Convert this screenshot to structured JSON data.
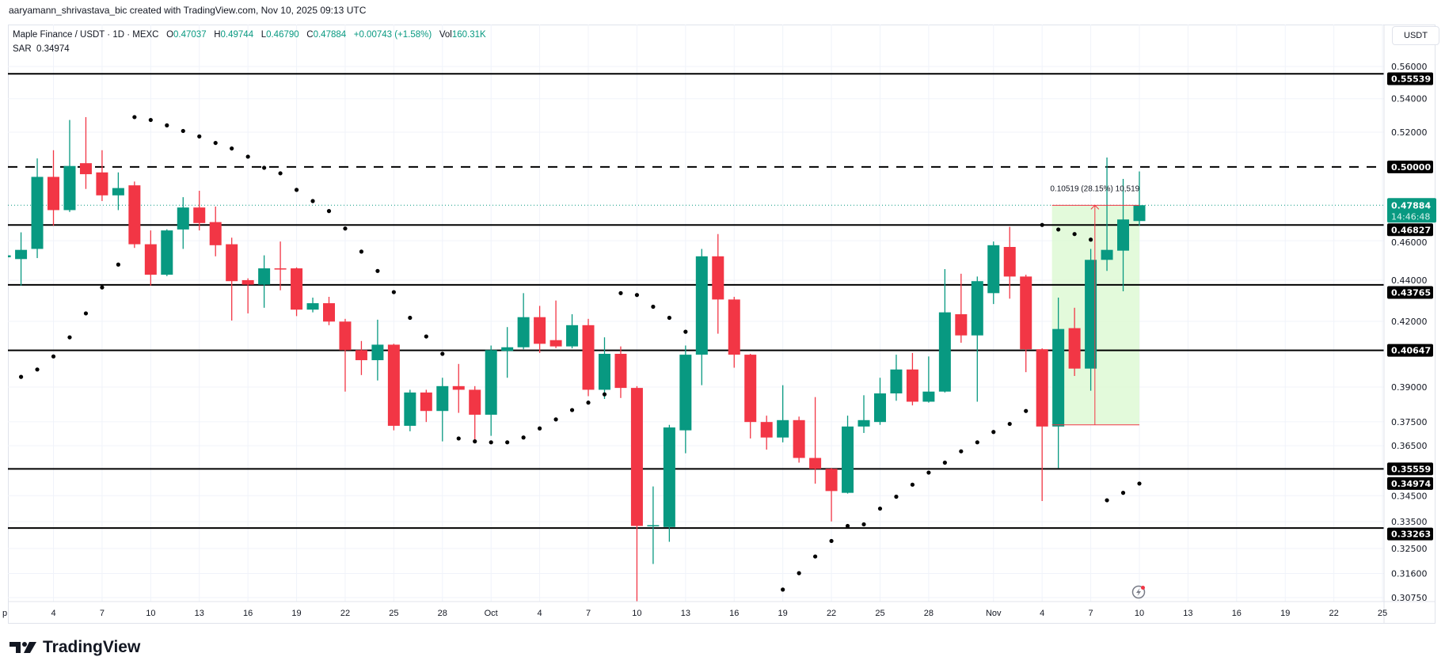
{
  "header": {
    "attribution": "aaryamann_shrivastava_bic created with TradingView.com, Nov 10, 2025 09:13 UTC"
  },
  "legend": {
    "symbol": "Maple Finance / USDT · 1D · MEXC",
    "o_label": "O",
    "o": "0.47037",
    "h_label": "H",
    "h": "0.49744",
    "l_label": "L",
    "l": "0.46790",
    "c_label": "C",
    "c": "0.47884",
    "change": "+0.00743 (+1.58%)",
    "vol_label": "Vol",
    "vol": "160.31K",
    "sar_label": "SAR",
    "sar": "0.34974"
  },
  "currency_button": "USDT",
  "logo": {
    "text": "TradingView"
  },
  "colors": {
    "up": "#089981",
    "down": "#F23645",
    "level": "#000000",
    "measure_fill": "#dcf9d2",
    "measure_line": "#F23645"
  },
  "chart_data": {
    "type": "candlestick",
    "title": "Maple Finance / USDT · 1D · MEXC",
    "start_date": "2025-09-01",
    "y_scale": "log",
    "ylim": [
      0.3075,
      0.56
    ],
    "candles_ohlc": [
      [
        0.4515,
        0.4535,
        0.4505,
        0.4525
      ],
      [
        0.4506,
        0.4644,
        0.4373,
        0.4553
      ],
      [
        0.4558,
        0.5048,
        0.4511,
        0.4944
      ],
      [
        0.4944,
        0.5095,
        0.4679,
        0.4762
      ],
      [
        0.4762,
        0.5272,
        0.4752,
        0.5005
      ],
      [
        0.5021,
        0.5289,
        0.4877,
        0.4959
      ],
      [
        0.4969,
        0.5095,
        0.4811,
        0.4842
      ],
      [
        0.4842,
        0.4969,
        0.4762,
        0.4882
      ],
      [
        0.4897,
        0.4918,
        0.4563,
        0.4582
      ],
      [
        0.4582,
        0.4654,
        0.4373,
        0.4427
      ],
      [
        0.4427,
        0.466,
        0.442,
        0.4654
      ],
      [
        0.4659,
        0.4832,
        0.4558,
        0.4776
      ],
      [
        0.4776,
        0.4867,
        0.4654,
        0.4693
      ],
      [
        0.4698,
        0.4781,
        0.452,
        0.4577
      ],
      [
        0.4582,
        0.4616,
        0.4204,
        0.4395
      ],
      [
        0.44,
        0.4409,
        0.4238,
        0.4378
      ],
      [
        0.4378,
        0.4525,
        0.4265,
        0.4459
      ],
      [
        0.4459,
        0.4596,
        0.435,
        0.4455
      ],
      [
        0.4459,
        0.4464,
        0.4225,
        0.4256
      ],
      [
        0.4256,
        0.4314,
        0.4243,
        0.4287
      ],
      [
        0.4287,
        0.4318,
        0.4182,
        0.4199
      ],
      [
        0.4199,
        0.4212,
        0.388,
        0.4066
      ],
      [
        0.4066,
        0.4108,
        0.3953,
        0.402
      ],
      [
        0.402,
        0.4208,
        0.3929,
        0.4091
      ],
      [
        0.4091,
        0.4095,
        0.3714,
        0.3733
      ],
      [
        0.3733,
        0.3888,
        0.371,
        0.3876
      ],
      [
        0.3876,
        0.3888,
        0.3749,
        0.3796
      ],
      [
        0.3796,
        0.3941,
        0.3668,
        0.3904
      ],
      [
        0.3904,
        0.4003,
        0.3788,
        0.3888
      ],
      [
        0.3888,
        0.3904,
        0.3672,
        0.378
      ],
      [
        0.378,
        0.4087,
        0.3691,
        0.4066
      ],
      [
        0.4062,
        0.4173,
        0.3941,
        0.4079
      ],
      [
        0.4079,
        0.4336,
        0.407,
        0.422
      ],
      [
        0.422,
        0.4274,
        0.4053,
        0.4095
      ],
      [
        0.4112,
        0.43,
        0.4075,
        0.4083
      ],
      [
        0.4083,
        0.4234,
        0.4074,
        0.4182
      ],
      [
        0.4182,
        0.4212,
        0.386,
        0.3888
      ],
      [
        0.3888,
        0.4125,
        0.3848,
        0.4049
      ],
      [
        0.4049,
        0.4083,
        0.3852,
        0.3896
      ],
      [
        0.3896,
        0.3904,
        0.3055,
        0.3334
      ],
      [
        0.3334,
        0.3486,
        0.3194,
        0.3337
      ],
      [
        0.333,
        0.3737,
        0.3275,
        0.3726
      ],
      [
        0.3714,
        0.4087,
        0.3619,
        0.4045
      ],
      [
        0.4045,
        0.4558,
        0.3908,
        0.452
      ],
      [
        0.452,
        0.4635,
        0.4142,
        0.4305
      ],
      [
        0.4305,
        0.4318,
        0.3986,
        0.4045
      ],
      [
        0.4045,
        0.4049,
        0.368,
        0.3749
      ],
      [
        0.3749,
        0.3776,
        0.3634,
        0.3684
      ],
      [
        0.3684,
        0.3908,
        0.3664,
        0.3757
      ],
      [
        0.3757,
        0.3772,
        0.3581,
        0.36
      ],
      [
        0.36,
        0.3856,
        0.3497,
        0.3556
      ],
      [
        0.3556,
        0.356,
        0.3351,
        0.3468
      ],
      [
        0.3461,
        0.3776,
        0.3458,
        0.373
      ],
      [
        0.373,
        0.3864,
        0.3703,
        0.3757
      ],
      [
        0.3749,
        0.3941,
        0.3737,
        0.3872
      ],
      [
        0.3872,
        0.4045,
        0.384,
        0.3978
      ],
      [
        0.3978,
        0.4053,
        0.382,
        0.3836
      ],
      [
        0.3836,
        0.4037,
        0.3832,
        0.388
      ],
      [
        0.388,
        0.4455,
        0.3876,
        0.4243
      ],
      [
        0.4234,
        0.4432,
        0.41,
        0.4134
      ],
      [
        0.4134,
        0.4418,
        0.3836,
        0.4395
      ],
      [
        0.4336,
        0.4596,
        0.4283,
        0.4577
      ],
      [
        0.4568,
        0.4673,
        0.4309,
        0.4418
      ],
      [
        0.4418,
        0.4427,
        0.3966,
        0.407
      ],
      [
        0.407,
        0.4074,
        0.3429,
        0.373
      ],
      [
        0.373,
        0.4314,
        0.3559,
        0.4164
      ],
      [
        0.4168,
        0.4265,
        0.3949,
        0.3982
      ],
      [
        0.3982,
        0.4558,
        0.3884,
        0.4502
      ],
      [
        0.4502,
        0.5053,
        0.4446,
        0.4553
      ],
      [
        0.4549,
        0.4933,
        0.4345,
        0.4712
      ],
      [
        0.47037,
        0.49744,
        0.4679,
        0.47884
      ]
    ],
    "sar": [
      null,
      0.3945,
      0.3978,
      0.4037,
      0.4125,
      0.4238,
      0.4364,
      0.4478,
      0.5289,
      0.5272,
      0.524,
      0.5207,
      0.5175,
      0.5137,
      0.5105,
      0.5058,
      0.4995,
      0.4964,
      0.4872,
      0.4811,
      0.4757,
      0.4664,
      0.4544,
      0.4446,
      0.4341,
      0.4217,
      0.4129,
      0.4049,
      0.368,
      0.3668,
      0.3664,
      0.3664,
      0.3684,
      0.3722,
      0.376,
      0.38,
      0.3832,
      0.3868,
      0.4336,
      0.4327,
      0.427,
      0.4217,
      0.4151,
      null,
      null,
      null,
      null,
      null,
      0.3103,
      0.3161,
      0.3221,
      0.3278,
      0.3334,
      0.334,
      0.34,
      0.3446,
      0.3493,
      0.3541,
      0.3581,
      0.3627,
      0.3664,
      0.3707,
      0.3741,
      0.3796,
      0.4683,
      0.4659,
      0.4635,
      0.4606,
      0.3432,
      0.3461,
      0.34974
    ],
    "price_ticks": [
      "0.56000",
      "0.54000",
      "0.52000",
      "0.46000",
      "0.44000",
      "0.42000",
      "0.39000",
      "0.37500",
      "0.36500",
      "0.34500",
      "0.33500",
      "0.32500",
      "0.31600",
      "0.30750"
    ],
    "time_ticks": [
      {
        "day": 0,
        "label": "p"
      },
      {
        "day": 3,
        "label": "4"
      },
      {
        "day": 6,
        "label": "7"
      },
      {
        "day": 9,
        "label": "10"
      },
      {
        "day": 12,
        "label": "13"
      },
      {
        "day": 15,
        "label": "16"
      },
      {
        "day": 18,
        "label": "19"
      },
      {
        "day": 21,
        "label": "22"
      },
      {
        "day": 24,
        "label": "25"
      },
      {
        "day": 27,
        "label": "28"
      },
      {
        "day": 30,
        "label": "Oct"
      },
      {
        "day": 33,
        "label": "4"
      },
      {
        "day": 36,
        "label": "7"
      },
      {
        "day": 39,
        "label": "10"
      },
      {
        "day": 42,
        "label": "13"
      },
      {
        "day": 45,
        "label": "16"
      },
      {
        "day": 48,
        "label": "19"
      },
      {
        "day": 51,
        "label": "22"
      },
      {
        "day": 54,
        "label": "25"
      },
      {
        "day": 57,
        "label": "28"
      },
      {
        "day": 61,
        "label": "Nov"
      },
      {
        "day": 64,
        "label": "4"
      },
      {
        "day": 67,
        "label": "7"
      },
      {
        "day": 70,
        "label": "10"
      },
      {
        "day": 73,
        "label": "13"
      },
      {
        "day": 76,
        "label": "16"
      },
      {
        "day": 79,
        "label": "19"
      },
      {
        "day": 82,
        "label": "22"
      },
      {
        "day": 85,
        "label": "25"
      }
    ],
    "levels": [
      {
        "price": "0.55539",
        "style": "solid"
      },
      {
        "price": "0.50000",
        "style": "dashed"
      },
      {
        "price": "0.46827",
        "style": "solid"
      },
      {
        "price": "0.43765",
        "style": "solid"
      },
      {
        "price": "0.40647",
        "style": "solid"
      },
      {
        "price": "0.35559",
        "style": "solid"
      },
      {
        "price": "0.33263",
        "style": "solid"
      }
    ],
    "sar_label": "0.34974",
    "last_price": {
      "price": "0.47884",
      "countdown": "14:46:48"
    },
    "measure": {
      "from_day": 65,
      "to_day": 70,
      "low": 0.3737,
      "high": 0.4788,
      "text": "0.10519 (28.15%) 10,519"
    }
  }
}
